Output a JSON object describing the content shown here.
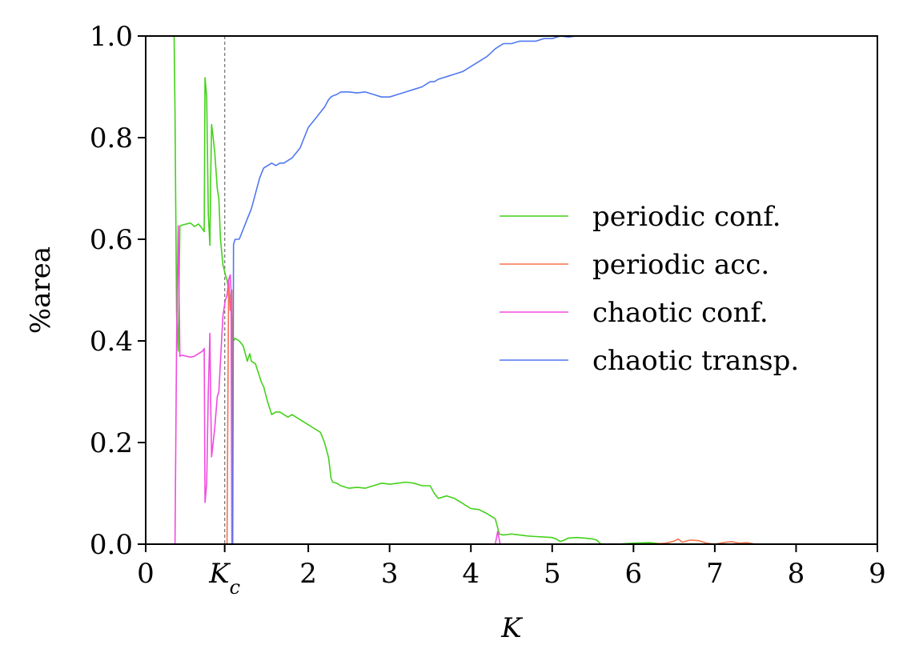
{
  "chart_data": {
    "type": "line",
    "xlabel": "K",
    "ylabel": "%area",
    "xlim": [
      0,
      9
    ],
    "ylim": [
      0,
      1
    ],
    "x_ticks": [
      {
        "value": 0,
        "label": "0"
      },
      {
        "value": 0.9716,
        "label": "K",
        "subscript": "c"
      },
      {
        "value": 2,
        "label": "2"
      },
      {
        "value": 3,
        "label": "3"
      },
      {
        "value": 4,
        "label": "4"
      },
      {
        "value": 5,
        "label": "5"
      },
      {
        "value": 6,
        "label": "6"
      },
      {
        "value": 7,
        "label": "7"
      },
      {
        "value": 8,
        "label": "8"
      },
      {
        "value": 9,
        "label": "9"
      }
    ],
    "y_ticks": [
      {
        "value": 0,
        "label": "0.0"
      },
      {
        "value": 0.2,
        "label": "0.2"
      },
      {
        "value": 0.4,
        "label": "0.4"
      },
      {
        "value": 0.6,
        "label": "0.6"
      },
      {
        "value": 0.8,
        "label": "0.8"
      },
      {
        "value": 1.0,
        "label": "1.0"
      }
    ],
    "vline": {
      "x": 0.9716,
      "style": "dashed",
      "color": "#808080"
    },
    "grid": false,
    "legend_position": "center-right",
    "series": [
      {
        "name": "periodic conf.",
        "color": "#44d11a",
        "x": [
          0.35,
          0.36,
          0.38,
          0.4,
          0.42,
          0.45,
          0.5,
          0.55,
          0.6,
          0.65,
          0.7,
          0.72,
          0.73,
          0.75,
          0.77,
          0.79,
          0.8,
          0.81,
          0.83,
          0.85,
          0.88,
          0.9,
          0.92,
          0.95,
          0.98,
          1.0,
          1.02,
          1.05,
          1.08,
          1.1,
          1.15,
          1.2,
          1.25,
          1.28,
          1.3,
          1.35,
          1.4,
          1.42,
          1.45,
          1.5,
          1.55,
          1.6,
          1.65,
          1.7,
          1.75,
          1.8,
          1.85,
          1.9,
          1.95,
          2.0,
          2.05,
          2.1,
          2.15,
          2.2,
          2.25,
          2.28,
          2.3,
          2.35,
          2.4,
          2.5,
          2.6,
          2.7,
          2.8,
          2.9,
          3.0,
          3.1,
          3.2,
          3.3,
          3.4,
          3.5,
          3.55,
          3.6,
          3.7,
          3.8,
          3.9,
          4.0,
          4.1,
          4.2,
          4.3,
          4.35,
          4.4,
          4.5,
          4.6,
          4.7,
          4.8,
          4.9,
          5.0,
          5.05,
          5.1,
          5.15,
          5.2,
          5.3,
          5.4,
          5.5,
          5.55,
          5.6,
          5.8,
          6.0,
          6.2,
          6.4,
          6.6,
          6.8,
          7.0,
          7.5,
          8.0
        ],
        "y": [
          1.0,
          0.85,
          0.45,
          0.38,
          0.626,
          0.628,
          0.63,
          0.632,
          0.625,
          0.63,
          0.62,
          0.615,
          0.918,
          0.88,
          0.65,
          0.588,
          0.72,
          0.826,
          0.8,
          0.77,
          0.7,
          0.68,
          0.6,
          0.55,
          0.53,
          0.52,
          0.5,
          0.48,
          0.4,
          0.405,
          0.4,
          0.39,
          0.36,
          0.375,
          0.36,
          0.355,
          0.33,
          0.32,
          0.31,
          0.28,
          0.255,
          0.26,
          0.26,
          0.255,
          0.25,
          0.255,
          0.25,
          0.245,
          0.24,
          0.235,
          0.23,
          0.225,
          0.22,
          0.2,
          0.17,
          0.13,
          0.122,
          0.12,
          0.115,
          0.11,
          0.112,
          0.11,
          0.115,
          0.12,
          0.118,
          0.12,
          0.122,
          0.12,
          0.115,
          0.115,
          0.1,
          0.09,
          0.095,
          0.09,
          0.08,
          0.07,
          0.068,
          0.06,
          0.05,
          0.02,
          0.018,
          0.02,
          0.018,
          0.016,
          0.015,
          0.014,
          0.013,
          0.01,
          0.005,
          0.008,
          0.012,
          0.013,
          0.012,
          0.01,
          0.008,
          0.0,
          0.0,
          0.002,
          0.003,
          0.0,
          0.0,
          0.0,
          0.0,
          0.0,
          0.0
        ]
      },
      {
        "name": "periodic acc.",
        "color": "#f8734d",
        "x": [
          0.95,
          1.0,
          1.02,
          1.04,
          1.06,
          1.07,
          1.08,
          1.5,
          2.0,
          3.0,
          4.0,
          5.0,
          6.0,
          6.2,
          6.4,
          6.5,
          6.55,
          6.6,
          6.7,
          6.8,
          6.9,
          7.0,
          7.1,
          7.2,
          7.3,
          7.4,
          7.5,
          8.0
        ],
        "y": [
          0.0,
          0.0,
          0.52,
          0.46,
          0.5,
          0.0,
          0.0,
          0.0,
          0.0,
          0.0,
          0.0,
          0.0,
          0.0,
          0.0,
          0.002,
          0.006,
          0.01,
          0.004,
          0.008,
          0.007,
          0.002,
          0.0,
          0.003,
          0.005,
          0.002,
          0.003,
          0.0,
          0.0
        ]
      },
      {
        "name": "chaotic conf.",
        "color": "#f04be0",
        "x": [
          0.35,
          0.36,
          0.38,
          0.4,
          0.42,
          0.45,
          0.5,
          0.55,
          0.6,
          0.65,
          0.7,
          0.72,
          0.73,
          0.75,
          0.77,
          0.79,
          0.8,
          0.81,
          0.83,
          0.85,
          0.88,
          0.9,
          0.92,
          0.95,
          0.98,
          1.0,
          1.02,
          1.04,
          1.05,
          1.06,
          1.07,
          1.5,
          2.0,
          3.0,
          4.0,
          4.3,
          4.33,
          4.36,
          5.0,
          6.0,
          7.0,
          8.0
        ],
        "y": [
          0.0,
          0.0,
          0.4,
          0.627,
          0.37,
          0.372,
          0.37,
          0.368,
          0.37,
          0.375,
          0.38,
          0.385,
          0.082,
          0.12,
          0.3,
          0.415,
          0.28,
          0.172,
          0.2,
          0.23,
          0.29,
          0.3,
          0.36,
          0.45,
          0.48,
          0.49,
          0.52,
          0.53,
          0.5,
          0.0,
          0.0,
          0.0,
          0.0,
          0.0,
          0.0,
          0.0,
          0.025,
          0.0,
          0.0,
          0.0,
          0.0,
          0.0
        ]
      },
      {
        "name": "chaotic transp.",
        "color": "#5078f0",
        "x": [
          1.06,
          1.07,
          1.08,
          1.1,
          1.15,
          1.2,
          1.25,
          1.3,
          1.35,
          1.4,
          1.45,
          1.5,
          1.55,
          1.6,
          1.65,
          1.7,
          1.75,
          1.8,
          1.85,
          1.9,
          1.95,
          2.0,
          2.05,
          2.1,
          2.15,
          2.2,
          2.25,
          2.28,
          2.3,
          2.35,
          2.4,
          2.5,
          2.6,
          2.7,
          2.8,
          2.9,
          3.0,
          3.1,
          3.2,
          3.3,
          3.4,
          3.5,
          3.55,
          3.6,
          3.7,
          3.8,
          3.9,
          4.0,
          4.1,
          4.2,
          4.3,
          4.35,
          4.4,
          4.5,
          4.6,
          4.7,
          4.8,
          4.9,
          5.0,
          5.1,
          5.2,
          5.3,
          5.4,
          5.5,
          5.6,
          5.8,
          6.0,
          6.2,
          6.4,
          6.6,
          6.8,
          7.0,
          7.2,
          7.5,
          8.0
        ],
        "y": [
          0.0,
          0.0,
          0.59,
          0.6,
          0.6,
          0.62,
          0.64,
          0.66,
          0.69,
          0.72,
          0.74,
          0.745,
          0.75,
          0.745,
          0.75,
          0.75,
          0.755,
          0.76,
          0.77,
          0.78,
          0.8,
          0.82,
          0.83,
          0.84,
          0.85,
          0.86,
          0.875,
          0.88,
          0.882,
          0.885,
          0.89,
          0.89,
          0.888,
          0.89,
          0.885,
          0.88,
          0.88,
          0.885,
          0.89,
          0.895,
          0.9,
          0.91,
          0.91,
          0.915,
          0.92,
          0.925,
          0.93,
          0.94,
          0.95,
          0.96,
          0.975,
          0.98,
          0.985,
          0.985,
          0.99,
          0.99,
          0.99,
          0.995,
          0.995,
          1.0,
          0.998,
          1.0,
          1.0,
          1.0,
          1.0,
          1.0,
          1.0,
          1.0,
          1.0,
          1.0,
          1.0,
          1.0,
          1.0,
          1.0,
          1.0
        ]
      }
    ]
  }
}
